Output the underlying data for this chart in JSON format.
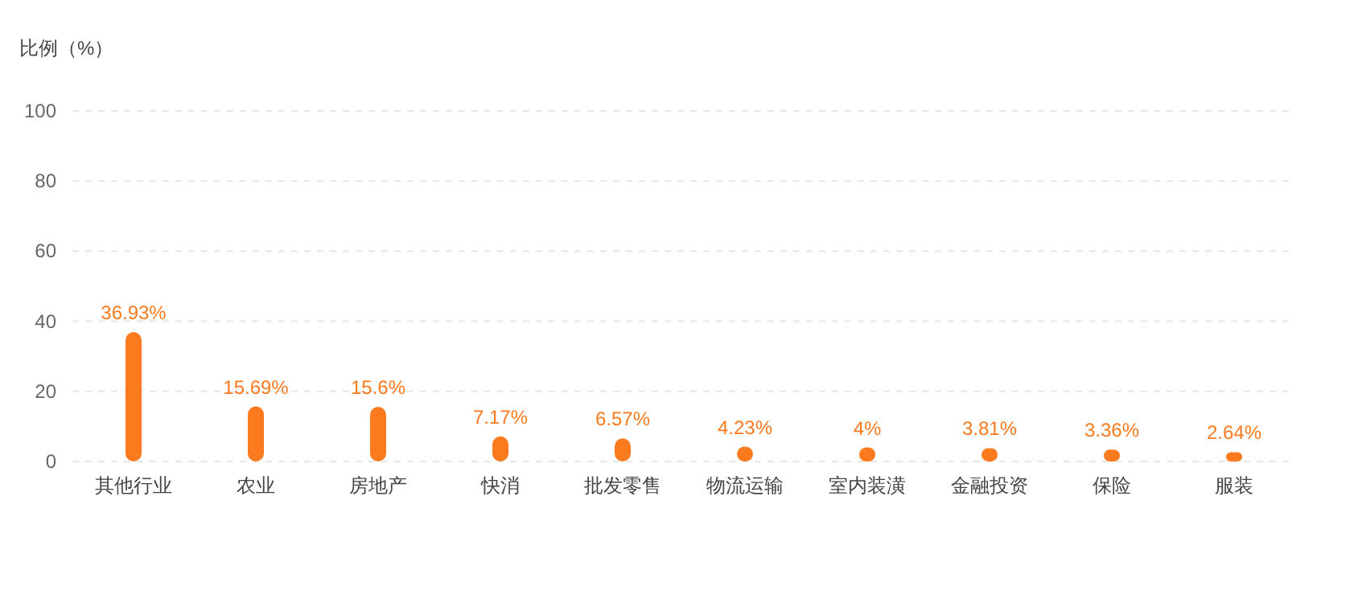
{
  "chart_data": {
    "type": "bar",
    "ylabel": "比例（%）",
    "categories": [
      "其他行业",
      "农业",
      "房地产",
      "快消",
      "批发零售",
      "物流运输",
      "室内装潢",
      "金融投资",
      "保险",
      "服装"
    ],
    "values": [
      36.93,
      15.69,
      15.6,
      7.17,
      6.57,
      4.23,
      4,
      3.81,
      3.36,
      2.64
    ],
    "value_labels": [
      "36.93%",
      "15.69%",
      "15.6%",
      "7.17%",
      "6.57%",
      "4.23%",
      "4%",
      "3.81%",
      "3.36%",
      "2.64%"
    ],
    "color": "#fb7a1e",
    "ylim": [
      0,
      100
    ],
    "yticks": [
      0,
      20,
      40,
      60,
      80,
      100
    ],
    "grid": "y"
  }
}
